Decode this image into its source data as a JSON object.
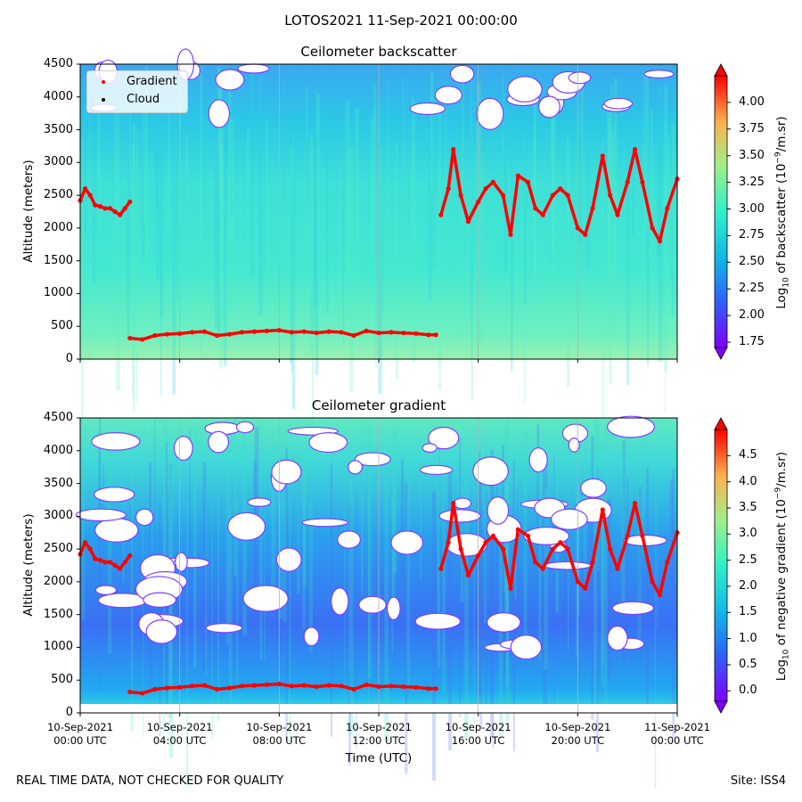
{
  "figure": {
    "suptitle": "LOTOS2021 11-Sep-2021 00:00:00",
    "footer_left": "REAL TIME DATA, NOT CHECKED FOR QUALITY",
    "footer_right": "Site: ISS4",
    "xlabel": "Time (UTC)"
  },
  "colors": {
    "gradient_marker": "#ff0000",
    "cloud_marker": "#000000",
    "grid": "#b0b0b0"
  },
  "chart_data": [
    {
      "type": "heatmap",
      "title": "Ceilometer backscatter",
      "ylabel": "Altitude (meters)",
      "ylim": [
        0,
        4500
      ],
      "yticks": [
        "0",
        "500",
        "1000",
        "1500",
        "2000",
        "2500",
        "3000",
        "3500",
        "4000",
        "4500"
      ],
      "xlim_hours": [
        0,
        24
      ],
      "colorbar": {
        "label": "Log10 of backscatter (10^-9/m.sr)",
        "label_main": "Log",
        "label_sub": "10",
        "label_rest": " of backscatter (10",
        "label_sup": "−9",
        "label_end": "/m.sr)",
        "range": [
          1.7,
          4.25
        ],
        "ticks": [
          "1.75",
          "2.00",
          "2.25",
          "2.50",
          "2.75",
          "3.00",
          "3.25",
          "3.50",
          "3.75",
          "4.00"
        ]
      },
      "legend": [
        "Gradient",
        "Cloud"
      ],
      "gradient_layer_lower": {
        "x_hours": [
          2.0,
          2.5,
          3.0,
          3.5,
          4.0,
          4.5,
          5.0,
          5.5,
          6.0,
          6.5,
          7.0,
          7.5,
          8.0,
          8.5,
          9.0,
          9.5,
          10.0,
          10.5,
          11.0,
          11.5,
          12.0,
          12.5,
          13.0,
          13.5,
          14.0,
          14.3
        ],
        "altitude_m": [
          320,
          300,
          360,
          380,
          390,
          410,
          420,
          360,
          380,
          410,
          420,
          430,
          440,
          410,
          420,
          400,
          420,
          410,
          360,
          430,
          400,
          410,
          400,
          390,
          370,
          370
        ]
      },
      "gradient_layer_upper": {
        "x_hours": [
          0.0,
          0.2,
          0.4,
          0.6,
          0.8,
          1.0,
          1.2,
          1.4,
          1.6,
          1.8,
          2.0,
          14.5,
          14.8,
          15.0,
          15.3,
          15.6,
          16.0,
          16.3,
          16.6,
          17.0,
          17.3,
          17.6,
          18.0,
          18.3,
          18.6,
          19.0,
          19.3,
          19.6,
          20.0,
          20.3,
          20.6,
          21.0,
          21.3,
          21.6,
          22.0,
          22.3,
          22.6,
          23.0,
          23.3,
          23.6,
          24.0
        ],
        "altitude_m": [
          2420,
          2600,
          2500,
          2350,
          2330,
          2300,
          2300,
          2250,
          2200,
          2300,
          2400,
          2200,
          2600,
          3200,
          2500,
          2100,
          2400,
          2600,
          2700,
          2500,
          1900,
          2800,
          2700,
          2300,
          2200,
          2500,
          2600,
          2500,
          2000,
          1900,
          2300,
          3100,
          2500,
          2200,
          2700,
          3200,
          2700,
          2000,
          1800,
          2300,
          2750
        ]
      }
    },
    {
      "type": "heatmap",
      "title": "Ceilometer gradient",
      "ylabel": "Altitude (meters)",
      "ylim": [
        0,
        4500
      ],
      "yticks": [
        "0",
        "500",
        "1000",
        "1500",
        "2000",
        "2500",
        "3000",
        "3500",
        "4000",
        "4500"
      ],
      "xlim_hours": [
        0,
        24
      ],
      "xticks": [
        {
          "line1": "10-Sep-2021",
          "line2": "00:00 UTC"
        },
        {
          "line1": "10-Sep-2021",
          "line2": "04:00 UTC"
        },
        {
          "line1": "10-Sep-2021",
          "line2": "08:00 UTC"
        },
        {
          "line1": "10-Sep-2021",
          "line2": "12:00 UTC"
        },
        {
          "line1": "10-Sep-2021",
          "line2": "16:00 UTC"
        },
        {
          "line1": "10-Sep-2021",
          "line2": "20:00 UTC"
        },
        {
          "line1": "11-Sep-2021",
          "line2": "00:00 UTC"
        }
      ],
      "colorbar": {
        "label": "Log10 of negative gradient (10^-9/m.sr)",
        "label_main": "Log",
        "label_sub": "10",
        "label_rest": " of negative gradient (10",
        "label_sup": "−9",
        "label_end": "/m.sr)",
        "range": [
          -0.2,
          5.0
        ],
        "ticks": [
          "0.0",
          "0.5",
          "1.0",
          "1.5",
          "2.0",
          "2.5",
          "3.0",
          "3.5",
          "4.0",
          "4.5"
        ]
      }
    }
  ]
}
